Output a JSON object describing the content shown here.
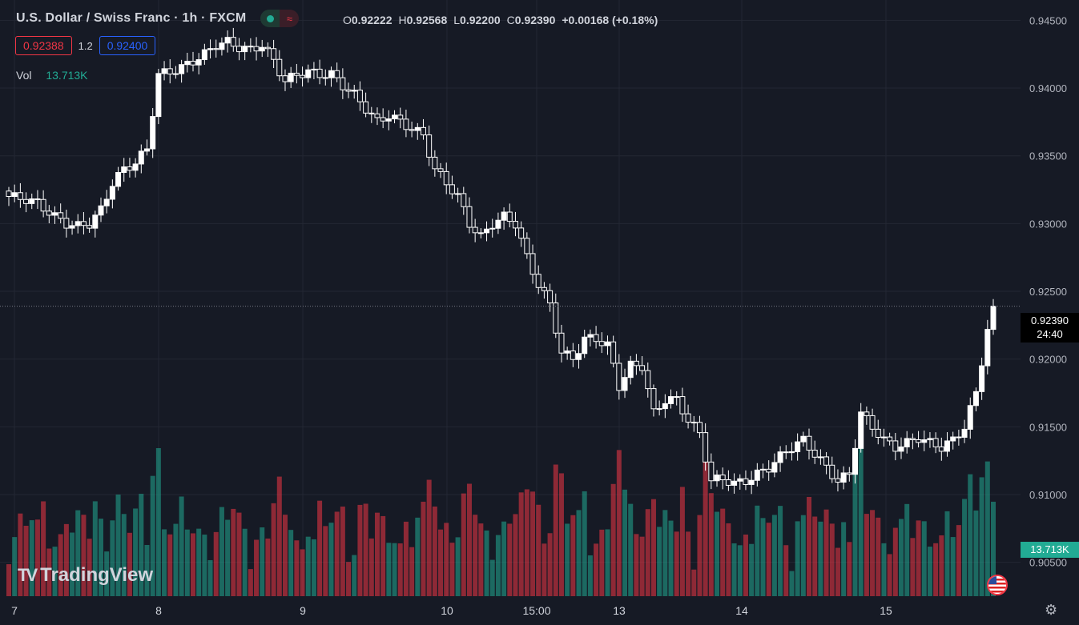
{
  "header": {
    "symbol": "U.S. Dollar / Swiss Franc · 1h · FXCM",
    "wave_icon": "≈"
  },
  "ohlc": {
    "o_label": "O",
    "o": "0.92222",
    "h_label": "H",
    "h": "0.92568",
    "l_label": "L",
    "l": "0.92200",
    "c_label": "C",
    "c": "0.92390",
    "change": "+0.00168 (+0.18%)"
  },
  "trade": {
    "sell": "0.92388",
    "spread": "1.2",
    "buy": "0.92400"
  },
  "volume": {
    "label": "Vol",
    "value": "13.713K"
  },
  "price_tag": {
    "price": "0.92390",
    "countdown": "24:40"
  },
  "volume_tag": "13.713K",
  "logo": {
    "mark": "TV",
    "text": "TradingView"
  },
  "colors": {
    "up": "#22ab94",
    "down": "#f23645",
    "bg": "#161a25",
    "candle": "#ffffff"
  },
  "chart_data": {
    "type": "candlestick",
    "yaxis": {
      "ticks": [
        "0.94500",
        "0.94000",
        "0.93500",
        "0.93000",
        "0.92500",
        "0.92000",
        "0.91500",
        "0.91000",
        "0.90500"
      ],
      "ylim": [
        0.9025,
        0.9465
      ]
    },
    "xaxis": {
      "ticks": [
        "7",
        "8",
        "9",
        "10",
        "15:00",
        "13",
        "14",
        "15"
      ]
    },
    "last_price": 0.9239,
    "anchors": [
      [
        0,
        0.932
      ],
      [
        3,
        0.9318
      ],
      [
        5,
        0.9315
      ],
      [
        8,
        0.9305
      ],
      [
        10,
        0.93
      ],
      [
        12,
        0.9298
      ],
      [
        14,
        0.93
      ],
      [
        16,
        0.931
      ],
      [
        18,
        0.933
      ],
      [
        20,
        0.934
      ],
      [
        22,
        0.9345
      ],
      [
        24,
        0.9355
      ],
      [
        26,
        0.941
      ],
      [
        28,
        0.9412
      ],
      [
        30,
        0.9415
      ],
      [
        32,
        0.942
      ],
      [
        34,
        0.9425
      ],
      [
        36,
        0.9432
      ],
      [
        38,
        0.9434
      ],
      [
        40,
        0.943
      ],
      [
        42,
        0.9428
      ],
      [
        44,
        0.9432
      ],
      [
        46,
        0.942
      ],
      [
        48,
        0.9405
      ],
      [
        50,
        0.941
      ],
      [
        52,
        0.9412
      ],
      [
        54,
        0.941
      ],
      [
        56,
        0.941
      ],
      [
        58,
        0.9402
      ],
      [
        60,
        0.9395
      ],
      [
        62,
        0.9385
      ],
      [
        64,
        0.9375
      ],
      [
        66,
        0.938
      ],
      [
        68,
        0.9375
      ],
      [
        70,
        0.937
      ],
      [
        72,
        0.9365
      ],
      [
        74,
        0.934
      ],
      [
        76,
        0.933
      ],
      [
        78,
        0.932
      ],
      [
        80,
        0.93
      ],
      [
        82,
        0.929
      ],
      [
        84,
        0.93
      ],
      [
        86,
        0.9305
      ],
      [
        88,
        0.93
      ],
      [
        90,
        0.9275
      ],
      [
        92,
        0.9255
      ],
      [
        94,
        0.924
      ],
      [
        96,
        0.9205
      ],
      [
        98,
        0.92
      ],
      [
        100,
        0.9215
      ],
      [
        102,
        0.9215
      ],
      [
        104,
        0.921
      ],
      [
        106,
        0.918
      ],
      [
        108,
        0.9195
      ],
      [
        110,
        0.9195
      ],
      [
        112,
        0.916
      ],
      [
        114,
        0.917
      ],
      [
        116,
        0.917
      ],
      [
        118,
        0.9155
      ],
      [
        120,
        0.9145
      ],
      [
        122,
        0.911
      ],
      [
        124,
        0.9112
      ],
      [
        126,
        0.9108
      ],
      [
        128,
        0.911
      ],
      [
        130,
        0.9115
      ],
      [
        132,
        0.912
      ],
      [
        134,
        0.9128
      ],
      [
        136,
        0.9135
      ],
      [
        138,
        0.914
      ],
      [
        140,
        0.913
      ],
      [
        142,
        0.912
      ],
      [
        144,
        0.911
      ],
      [
        146,
        0.9115
      ],
      [
        148,
        0.916
      ],
      [
        150,
        0.915
      ],
      [
        152,
        0.914
      ],
      [
        154,
        0.9135
      ],
      [
        156,
        0.9138
      ],
      [
        158,
        0.9142
      ],
      [
        160,
        0.9138
      ],
      [
        162,
        0.9135
      ],
      [
        164,
        0.914
      ],
      [
        166,
        0.915
      ],
      [
        168,
        0.9175
      ],
      [
        170,
        0.9222
      ],
      [
        171,
        0.9239
      ]
    ],
    "volume_ylim": [
      0,
      25000
    ]
  }
}
